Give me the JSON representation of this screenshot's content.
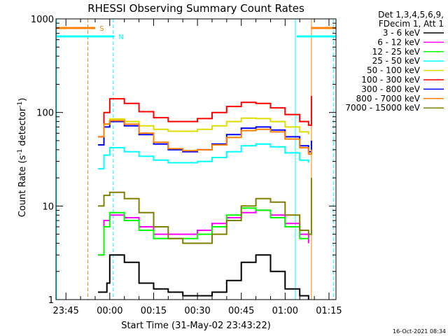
{
  "chart_data": {
    "type": "line",
    "title": "RHESSI Observing Summary Count Rates",
    "xlabel": "Start Time (31-May-02 23:43:22)",
    "ylabel_main": "Count Rate (s",
    "ylabel_sup1": "-1",
    "ylabel_mid": " detector",
    "ylabel_sup2": "-1",
    "ylabel_end": ")",
    "y_scale": "log",
    "ylim": [
      1,
      1000
    ],
    "xlim_minutes": [
      -18.4,
      77.4
    ],
    "x_ticks": [
      {
        "label": "23:45",
        "min": -15
      },
      {
        "label": "00:00",
        "min": 0
      },
      {
        "label": "00:15",
        "min": 15
      },
      {
        "label": "00:30",
        "min": 30
      },
      {
        "label": "00:45",
        "min": 45
      },
      {
        "label": "01:00",
        "min": 60
      },
      {
        "label": "01:15",
        "min": 75
      }
    ],
    "y_ticks": [
      {
        "label": "1",
        "value": 1
      },
      {
        "label": "10",
        "value": 10
      },
      {
        "label": "100",
        "value": 100
      },
      {
        "label": "1000",
        "value": 1000
      }
    ],
    "legend_placement": "outside-right",
    "legend_header": [
      "Det 1,3,4,5,6,9,",
      "FDecim 1, Att 1"
    ],
    "series": [
      {
        "name": "3 - 6 keV",
        "color": "#000000",
        "x": [
          -4,
          -1,
          0,
          5,
          10,
          15,
          20,
          25,
          30,
          35,
          40,
          45,
          50,
          55,
          60,
          65,
          68
        ],
        "y": [
          1.2,
          1.5,
          3,
          2.5,
          1.5,
          1.3,
          1.2,
          1.1,
          1.1,
          1.2,
          1.6,
          2.5,
          3,
          2,
          1.3,
          1.1,
          1.0
        ]
      },
      {
        "name": "6 - 12 keV",
        "color": "#ff00ff",
        "x": [
          -4,
          -2,
          0,
          5,
          10,
          15,
          20,
          25,
          30,
          35,
          40,
          45,
          50,
          55,
          60,
          65,
          68
        ],
        "y": [
          3,
          7,
          8,
          7.5,
          6,
          5,
          5,
          5,
          5.5,
          6.5,
          7.5,
          8.5,
          9,
          8,
          6.5,
          5,
          4
        ]
      },
      {
        "name": "12 - 25 keV",
        "color": "#00ff00",
        "x": [
          -4,
          -2,
          0,
          5,
          10,
          15,
          20,
          25,
          30,
          35,
          40,
          45,
          50,
          55,
          60,
          65,
          68
        ],
        "y": [
          3,
          6,
          8.5,
          7,
          5.5,
          4.5,
          4.5,
          4.5,
          5,
          6,
          8,
          9.5,
          9,
          7.5,
          6,
          4.5,
          4.5
        ]
      },
      {
        "name": "25 - 50 keV",
        "color": "#00ffff",
        "x": [
          -4,
          -2,
          0,
          5,
          10,
          15,
          20,
          25,
          30,
          35,
          40,
          45,
          50,
          55,
          60,
          65,
          68
        ],
        "y": [
          25,
          35,
          42,
          38,
          34,
          31,
          29,
          29,
          30,
          33,
          38,
          44,
          46,
          43,
          37,
          31,
          29
        ]
      },
      {
        "name": "50 - 100 keV",
        "color": "#dddd00",
        "x": [
          -4,
          -2,
          0,
          5,
          10,
          15,
          20,
          25,
          30,
          35,
          40,
          45,
          50,
          55,
          60,
          65,
          68
        ],
        "y": [
          45,
          75,
          85,
          80,
          72,
          66,
          63,
          63,
          66,
          72,
          80,
          87,
          86,
          80,
          70,
          62,
          58
        ]
      },
      {
        "name": "100 - 300 keV",
        "color": "#ff0000",
        "x": [
          -4,
          -2,
          0,
          5,
          10,
          15,
          20,
          25,
          30,
          35,
          40,
          45,
          50,
          55,
          60,
          65,
          68,
          69
        ],
        "y": [
          55,
          100,
          140,
          125,
          102,
          88,
          80,
          80,
          86,
          100,
          116,
          128,
          125,
          112,
          95,
          80,
          73,
          150
        ]
      },
      {
        "name": "300 - 800 keV",
        "color": "#0000ff",
        "x": [
          -4,
          -2,
          0,
          5,
          10,
          15,
          20,
          25,
          30,
          35,
          40,
          45,
          50,
          55,
          60,
          65,
          68,
          69
        ],
        "y": [
          45,
          70,
          80,
          72,
          58,
          46,
          40,
          38,
          40,
          46,
          58,
          68,
          70,
          65,
          55,
          44,
          38,
          50
        ]
      },
      {
        "name": "800 - 7000 keV",
        "color": "#ff8000",
        "x": [
          -4,
          -2,
          0,
          5,
          10,
          15,
          20,
          25,
          30,
          35,
          40,
          45,
          50,
          55,
          60,
          65,
          68,
          69
        ],
        "y": [
          55,
          75,
          82,
          75,
          60,
          48,
          41,
          39,
          40,
          45,
          54,
          64,
          66,
          62,
          52,
          42,
          36,
          40
        ]
      },
      {
        "name": "7000 - 15000 keV",
        "color": "#808000",
        "x": [
          -4,
          -2,
          0,
          5,
          10,
          15,
          20,
          25,
          30,
          35,
          40,
          45,
          50,
          55,
          60,
          65,
          68,
          69
        ],
        "y": [
          10,
          13,
          14,
          12,
          8.5,
          6,
          4.5,
          4,
          4,
          5,
          7,
          10,
          12,
          11,
          8,
          5.5,
          5,
          20
        ]
      }
    ],
    "annotations": [
      {
        "label": "S",
        "color": "#ff8000",
        "level": 800,
        "x_start": -18.4,
        "x_end": -5,
        "label_at": -3.5
      },
      {
        "label": "N",
        "color": "#00ffff",
        "level": 650,
        "x_start": -18.4,
        "x_end": 1.5,
        "label_at": 3
      }
    ],
    "extra_bars": [
      {
        "color": "#ff8000",
        "level": 800,
        "x_start": 69,
        "x_end": 77.4
      },
      {
        "color": "#00ffff",
        "level": 650,
        "x_start": 64,
        "x_end": 77.4
      }
    ],
    "vlines": [
      {
        "x": -18.2,
        "color": "#00ffff",
        "style": "solid"
      },
      {
        "x": -7.5,
        "color": "#ff8000",
        "style": "dashed"
      },
      {
        "x": 1.2,
        "color": "#00ffff",
        "style": "dashed"
      },
      {
        "x": 63.5,
        "color": "#00ffff",
        "style": "solid"
      },
      {
        "x": 69,
        "color": "#ff8000",
        "style": "solid"
      },
      {
        "x": 76.5,
        "color": "#00ffff",
        "style": "dashed"
      }
    ]
  },
  "footer": {
    "timestamp": "16-Oct-2021 08:34"
  }
}
